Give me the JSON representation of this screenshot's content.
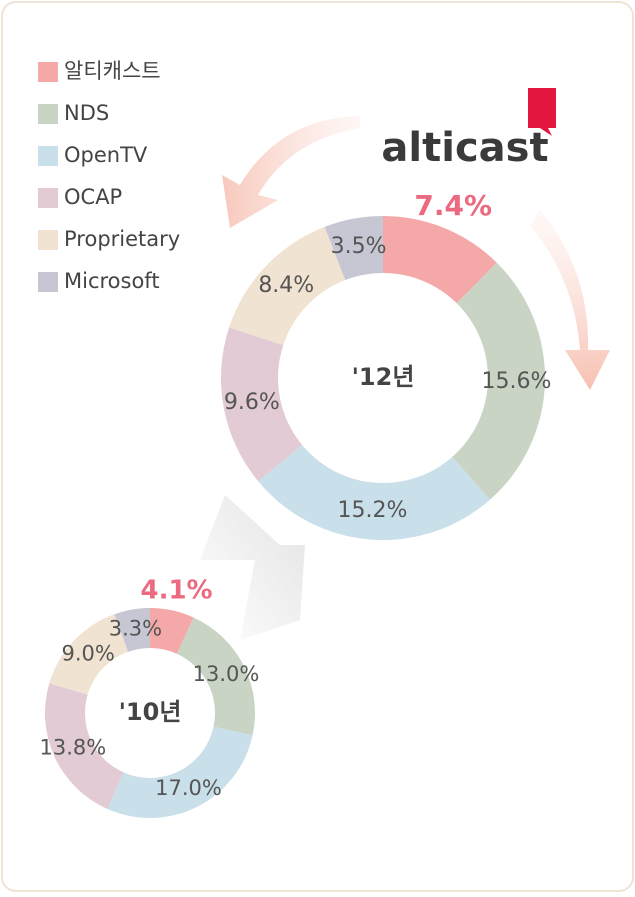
{
  "logo": "alticast",
  "chart_data": [
    {
      "type": "donut",
      "center_label": "'12년",
      "categories": [
        "알티캐스트",
        "NDS",
        "OpenTV",
        "OCAP",
        "Proprietary",
        "Microsoft"
      ],
      "values": [
        7.4,
        15.6,
        15.2,
        9.6,
        8.4,
        3.5
      ],
      "value_labels": [
        "7.4%",
        "15.6%",
        "15.2%",
        "9.6%",
        "8.4%",
        "3.5%"
      ],
      "colors": [
        "#f4a9a8",
        "#c9d4c5",
        "#c9dfe9",
        "#e2cbd4",
        "#f1e3d1",
        "#c6c7d3"
      ]
    },
    {
      "type": "donut",
      "center_label": "'10년",
      "categories": [
        "알티캐스트",
        "NDS",
        "OpenTV",
        "OCAP",
        "Proprietary",
        "Microsoft"
      ],
      "values": [
        4.1,
        13.0,
        17.0,
        13.8,
        9.0,
        3.3
      ],
      "value_labels": [
        "4.1%",
        "13.0%",
        "17.0%",
        "13.8%",
        "9.0%",
        "3.3%"
      ],
      "colors": [
        "#f4a9a8",
        "#c9d4c5",
        "#c9dfe9",
        "#e2cbd4",
        "#f1e3d1",
        "#c6c7d3"
      ]
    }
  ]
}
